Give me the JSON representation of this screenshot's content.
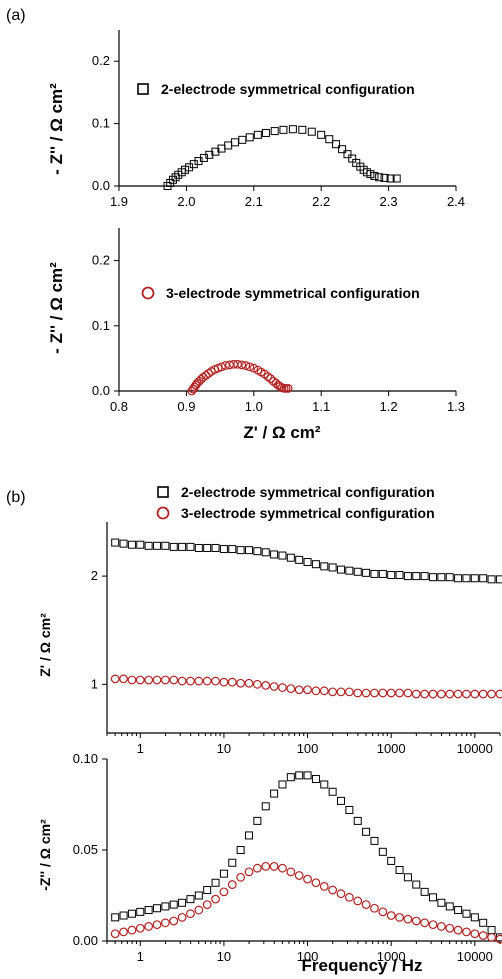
{
  "panel_labels": [
    "(a)",
    "(b)"
  ],
  "chart_data": [
    {
      "type": "scatter",
      "panel": "(a) top",
      "xlim": [
        1.9,
        2.4
      ],
      "ylim": [
        0,
        0.25
      ],
      "xticks": [
        "1.9",
        "2.0",
        "2.1",
        "2.2",
        "2.3",
        "2.4"
      ],
      "yticks": [
        "0.0",
        "0.1",
        "0.2"
      ],
      "ylabel": "- Z'' / Ω cm²",
      "xlabel": "",
      "legend": "2-electrode symmetrical configuration",
      "series": [
        {
          "name": "2-electrode symmetrical configuration",
          "marker": "square",
          "color": "#000000",
          "x": [
            1.972,
            1.976,
            1.98,
            1.984,
            1.988,
            1.993,
            1.998,
            2.004,
            2.011,
            2.018,
            2.026,
            2.034,
            2.043,
            2.052,
            2.062,
            2.072,
            2.083,
            2.094,
            2.106,
            2.118,
            2.131,
            2.144,
            2.158,
            2.172,
            2.186,
            2.2,
            2.212,
            2.222,
            2.231,
            2.239,
            2.246,
            2.252,
            2.258,
            2.263,
            2.268,
            2.273,
            2.279,
            2.286,
            2.294,
            2.303,
            2.312
          ],
          "y": [
            0.0,
            0.005,
            0.01,
            0.014,
            0.018,
            0.022,
            0.026,
            0.03,
            0.035,
            0.04,
            0.045,
            0.05,
            0.055,
            0.06,
            0.065,
            0.07,
            0.074,
            0.078,
            0.082,
            0.085,
            0.088,
            0.09,
            0.091,
            0.09,
            0.087,
            0.082,
            0.075,
            0.067,
            0.059,
            0.051,
            0.044,
            0.037,
            0.031,
            0.026,
            0.022,
            0.019,
            0.016,
            0.014,
            0.013,
            0.012,
            0.012
          ]
        }
      ]
    },
    {
      "type": "scatter",
      "panel": "(a) bottom",
      "xlim": [
        0.8,
        1.3
      ],
      "ylim": [
        0,
        0.25
      ],
      "xticks": [
        "0.8",
        "0.9",
        "1.0",
        "1.1",
        "1.2",
        "1.3"
      ],
      "yticks": [
        "0.0",
        "0.1",
        "0.2"
      ],
      "ylabel": "- Z'' / Ω cm²",
      "xlabel": "Z' / Ω cm²",
      "legend": "3-electrode symmetrical configuration",
      "series": [
        {
          "name": "3-electrode symmetrical configuration",
          "marker": "circle",
          "color": "#b22222",
          "x": [
            0.908,
            0.91,
            0.912,
            0.914,
            0.916,
            0.919,
            0.922,
            0.925,
            0.929,
            0.933,
            0.937,
            0.942,
            0.947,
            0.952,
            0.958,
            0.964,
            0.97,
            0.976,
            0.982,
            0.988,
            0.994,
            1.0,
            1.006,
            1.011,
            1.016,
            1.021,
            1.025,
            1.029,
            1.033,
            1.036,
            1.039,
            1.042,
            1.045,
            1.048,
            1.051
          ],
          "y": [
            0.0,
            0.003,
            0.006,
            0.009,
            0.012,
            0.015,
            0.018,
            0.021,
            0.024,
            0.027,
            0.03,
            0.033,
            0.035,
            0.037,
            0.039,
            0.04,
            0.041,
            0.041,
            0.04,
            0.039,
            0.037,
            0.035,
            0.032,
            0.029,
            0.026,
            0.022,
            0.019,
            0.015,
            0.012,
            0.009,
            0.007,
            0.005,
            0.004,
            0.004,
            0.004
          ]
        }
      ]
    },
    {
      "type": "scatter",
      "panel": "(b) top",
      "xscale": "log",
      "xlim": [
        0.4,
        20000
      ],
      "ylim": [
        0.55,
        2.5
      ],
      "xticks": [
        "1",
        "10",
        "100",
        "1000",
        "10000"
      ],
      "yticks": [
        "1",
        "2"
      ],
      "ylabel": "Z' / Ω cm²",
      "xlabel": "",
      "legend": [
        "2-electrode symmetrical configuration",
        "3-electrode symmetrical configuration"
      ],
      "series": [
        {
          "name": "2-electrode symmetrical configuration",
          "marker": "square",
          "color": "#000000",
          "x_log": [
            -0.3,
            -0.2,
            -0.1,
            0.0,
            0.1,
            0.2,
            0.3,
            0.4,
            0.5,
            0.6,
            0.7,
            0.8,
            0.9,
            1.0,
            1.1,
            1.2,
            1.3,
            1.4,
            1.5,
            1.6,
            1.7,
            1.8,
            1.9,
            2.0,
            2.1,
            2.2,
            2.3,
            2.4,
            2.5,
            2.6,
            2.7,
            2.8,
            2.9,
            3.0,
            3.1,
            3.2,
            3.3,
            3.4,
            3.5,
            3.6,
            3.7,
            3.8,
            3.9,
            4.0,
            4.1,
            4.2,
            4.3
          ],
          "y": [
            2.31,
            2.3,
            2.29,
            2.29,
            2.28,
            2.28,
            2.28,
            2.27,
            2.27,
            2.27,
            2.26,
            2.26,
            2.26,
            2.25,
            2.25,
            2.24,
            2.24,
            2.23,
            2.22,
            2.2,
            2.19,
            2.17,
            2.15,
            2.13,
            2.11,
            2.09,
            2.08,
            2.06,
            2.05,
            2.04,
            2.03,
            2.02,
            2.02,
            2.01,
            2.01,
            2.0,
            2.0,
            2.0,
            1.99,
            1.99,
            1.99,
            1.98,
            1.98,
            1.98,
            1.98,
            1.97,
            1.97
          ]
        },
        {
          "name": "3-electrode symmetrical configuration",
          "marker": "circle",
          "color": "#b22222",
          "x_log": [
            -0.3,
            -0.2,
            -0.1,
            0.0,
            0.1,
            0.2,
            0.3,
            0.4,
            0.5,
            0.6,
            0.7,
            0.8,
            0.9,
            1.0,
            1.1,
            1.2,
            1.3,
            1.4,
            1.5,
            1.6,
            1.7,
            1.8,
            1.9,
            2.0,
            2.1,
            2.2,
            2.3,
            2.4,
            2.5,
            2.6,
            2.7,
            2.8,
            2.9,
            3.0,
            3.1,
            3.2,
            3.3,
            3.4,
            3.5,
            3.6,
            3.7,
            3.8,
            3.9,
            4.0,
            4.1,
            4.2,
            4.3
          ],
          "y": [
            1.05,
            1.05,
            1.04,
            1.04,
            1.04,
            1.04,
            1.04,
            1.04,
            1.03,
            1.03,
            1.03,
            1.03,
            1.03,
            1.02,
            1.02,
            1.01,
            1.01,
            1.0,
            0.99,
            0.98,
            0.97,
            0.96,
            0.95,
            0.95,
            0.94,
            0.94,
            0.93,
            0.93,
            0.93,
            0.92,
            0.92,
            0.92,
            0.92,
            0.92,
            0.92,
            0.92,
            0.91,
            0.91,
            0.91,
            0.91,
            0.91,
            0.91,
            0.91,
            0.91,
            0.91,
            0.91,
            0.91
          ]
        }
      ]
    },
    {
      "type": "scatter",
      "panel": "(b) bottom",
      "xscale": "log",
      "xlim": [
        0.4,
        20000
      ],
      "ylim": [
        0,
        0.1
      ],
      "xticks": [
        "1",
        "10",
        "100",
        "1000",
        "10000"
      ],
      "yticks": [
        "0.00",
        "0.05",
        "0.10"
      ],
      "ylabel": "-Z'' / Ω cm²",
      "xlabel": "Frequency / Hz",
      "series": [
        {
          "name": "2-electrode symmetrical configuration",
          "marker": "square",
          "color": "#000000",
          "x_log": [
            -0.3,
            -0.2,
            -0.1,
            0.0,
            0.1,
            0.2,
            0.3,
            0.4,
            0.5,
            0.6,
            0.7,
            0.8,
            0.9,
            1.0,
            1.1,
            1.2,
            1.3,
            1.4,
            1.5,
            1.6,
            1.7,
            1.8,
            1.9,
            2.0,
            2.1,
            2.2,
            2.3,
            2.4,
            2.5,
            2.6,
            2.7,
            2.8,
            2.9,
            3.0,
            3.1,
            3.2,
            3.3,
            3.4,
            3.5,
            3.6,
            3.7,
            3.8,
            3.9,
            4.0,
            4.1,
            4.2,
            4.3
          ],
          "y": [
            0.013,
            0.014,
            0.015,
            0.016,
            0.017,
            0.018,
            0.019,
            0.02,
            0.021,
            0.023,
            0.025,
            0.028,
            0.032,
            0.037,
            0.043,
            0.05,
            0.058,
            0.066,
            0.074,
            0.081,
            0.086,
            0.09,
            0.091,
            0.091,
            0.089,
            0.086,
            0.082,
            0.077,
            0.072,
            0.066,
            0.06,
            0.055,
            0.049,
            0.044,
            0.039,
            0.035,
            0.031,
            0.027,
            0.024,
            0.021,
            0.019,
            0.017,
            0.015,
            0.013,
            0.01,
            0.006,
            0.002
          ]
        },
        {
          "name": "3-electrode symmetrical configuration",
          "marker": "circle",
          "color": "#b22222",
          "x_log": [
            -0.3,
            -0.2,
            -0.1,
            0.0,
            0.1,
            0.2,
            0.3,
            0.4,
            0.5,
            0.6,
            0.7,
            0.8,
            0.9,
            1.0,
            1.1,
            1.2,
            1.3,
            1.4,
            1.5,
            1.6,
            1.7,
            1.8,
            1.9,
            2.0,
            2.1,
            2.2,
            2.3,
            2.4,
            2.5,
            2.6,
            2.7,
            2.8,
            2.9,
            3.0,
            3.1,
            3.2,
            3.3,
            3.4,
            3.5,
            3.6,
            3.7,
            3.8,
            3.9,
            4.0,
            4.1,
            4.2,
            4.3
          ],
          "y": [
            0.004,
            0.005,
            0.006,
            0.007,
            0.008,
            0.009,
            0.01,
            0.011,
            0.013,
            0.015,
            0.017,
            0.02,
            0.023,
            0.027,
            0.031,
            0.035,
            0.038,
            0.04,
            0.041,
            0.041,
            0.04,
            0.038,
            0.036,
            0.034,
            0.032,
            0.03,
            0.028,
            0.026,
            0.024,
            0.022,
            0.02,
            0.018,
            0.016,
            0.014,
            0.013,
            0.012,
            0.011,
            0.01,
            0.009,
            0.008,
            0.007,
            0.006,
            0.005,
            0.004,
            0.003,
            0.002,
            0.001
          ]
        }
      ]
    }
  ]
}
